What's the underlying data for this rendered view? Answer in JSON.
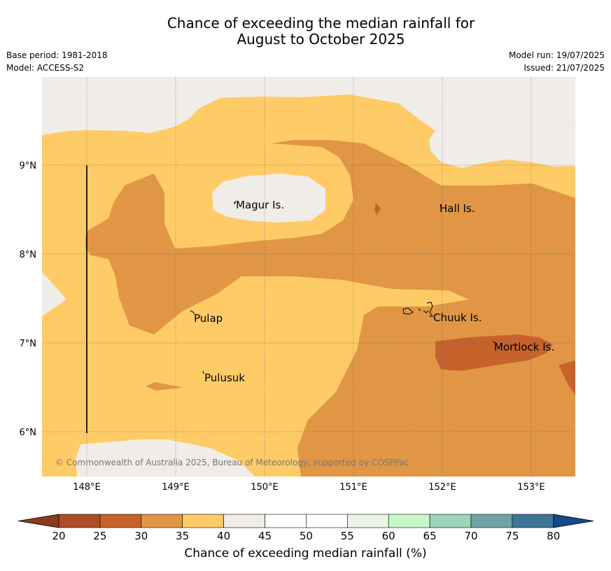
{
  "title_line1": "Chance of exceeding the median rainfall for",
  "title_line2": "August to October 2025",
  "base_period": "Base period: 1981-2018",
  "model": "Model: ACCESS-S2",
  "model_run": "Model run: 19/07/2025",
  "issued": "Issued: 21/07/2025",
  "copyright": "© Commonwealth of Australia 2025, Bureau of Meteorology, supported by COSPPac",
  "map": {
    "lon_ticks": [
      "148°E",
      "149°E",
      "150°E",
      "151°E",
      "152°E",
      "153°E"
    ],
    "lat_ticks": [
      "9°N",
      "8°N",
      "7°N",
      "6°N"
    ],
    "places": [
      "Magur Is.",
      "Hall Is.",
      "Pulap",
      "Chuuk Is.",
      "Mortlock Is.",
      "Pulusuk"
    ],
    "category_colors": {
      "25-30": "#C7622D",
      "30-35": "#E09644",
      "35-40": "#FFCB66",
      "40-45": "#F0ECE7"
    }
  },
  "legend": {
    "title": "Chance of exceeding median rainfall (%)",
    "ticks": [
      "20",
      "25",
      "30",
      "35",
      "40",
      "45",
      "50",
      "55",
      "60",
      "65",
      "70",
      "75",
      "80"
    ],
    "under_color": "#8C3A1E",
    "colors": [
      "#AE4C25",
      "#C7622D",
      "#E09644",
      "#FFCB66",
      "#F0ECE7",
      "#FFFFFF",
      "#FFFFFF",
      "#EAF5E8",
      "#C7F7C8",
      "#9DD4B9",
      "#6FA3A8",
      "#3F7597"
    ],
    "over_color": "#144A87"
  }
}
